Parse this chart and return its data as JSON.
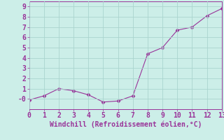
{
  "x": [
    0,
    1,
    2,
    3,
    4,
    5,
    6,
    7,
    8,
    9,
    10,
    11,
    12,
    13
  ],
  "y": [
    -0.1,
    0.3,
    1.0,
    0.8,
    0.4,
    -0.3,
    -0.2,
    0.3,
    4.4,
    5.0,
    6.7,
    7.0,
    8.1,
    8.8
  ],
  "line_color": "#993399",
  "marker": "D",
  "marker_size": 2.5,
  "xlim": [
    0,
    13
  ],
  "ylim": [
    -1.0,
    9.5
  ],
  "xticks": [
    0,
    1,
    2,
    3,
    4,
    5,
    6,
    7,
    8,
    9,
    10,
    11,
    12,
    13
  ],
  "yticks": [
    0,
    1,
    2,
    3,
    4,
    5,
    6,
    7,
    8,
    9
  ],
  "ytick_labels": [
    "-0",
    "1",
    "2",
    "3",
    "4",
    "5",
    "6",
    "7",
    "8",
    "9"
  ],
  "xlabel": "Windchill (Refroidissement éolien,°C)",
  "background_color": "#cceee8",
  "grid_color": "#aad4ce",
  "axis_color": "#993399",
  "tick_color": "#993399",
  "label_color": "#993399",
  "tick_fontsize": 7,
  "xlabel_fontsize": 7
}
